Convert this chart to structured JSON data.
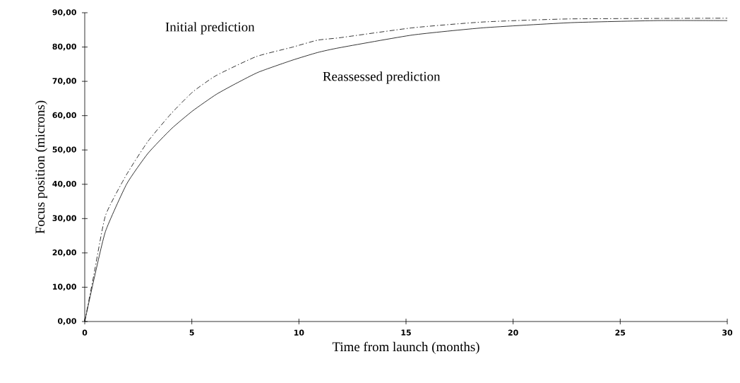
{
  "chart_data": {
    "type": "line",
    "xlabel": "Time from launch  (months)",
    "ylabel": "Focus position  (microns)",
    "xlim": [
      0,
      30
    ],
    "ylim": [
      0,
      90
    ],
    "xticks": [
      0,
      5,
      10,
      15,
      20,
      25,
      30
    ],
    "yticks": [
      {
        "value": 0,
        "label": "0,00"
      },
      {
        "value": 10,
        "label": "10,00"
      },
      {
        "value": 20,
        "label": "20,00"
      },
      {
        "value": 30,
        "label": "30,00"
      },
      {
        "value": 40,
        "label": "40,00"
      },
      {
        "value": 50,
        "label": "50,00"
      },
      {
        "value": 60,
        "label": "60,00"
      },
      {
        "value": 70,
        "label": "70,00"
      },
      {
        "value": 80,
        "label": "80,00"
      },
      {
        "value": 90,
        "label": "90,00"
      }
    ],
    "grid": false,
    "legend": false,
    "marker": "none",
    "series": [
      {
        "name": "Initial prediction",
        "color": "#000000",
        "line_style": "dashed",
        "x": [
          0,
          0.42,
          0.97,
          1.96,
          2.95,
          4.05,
          5.04,
          6.14,
          8.0,
          9.66,
          10.87,
          11.9,
          15.3,
          18.6,
          22.7,
          30
        ],
        "values": [
          0,
          13.4,
          30.9,
          42.9,
          52.5,
          60.7,
          66.9,
          71.7,
          77.2,
          79.9,
          82.0,
          82.7,
          85.6,
          87.3,
          88.2,
          88.4
        ]
      },
      {
        "name": "Reassessed prediction",
        "color": "#000000",
        "line_style": "solid",
        "x": [
          0,
          0.42,
          0.97,
          1.96,
          2.95,
          4.05,
          5.04,
          6.14,
          7.13,
          8.12,
          9.66,
          10.87,
          11.9,
          15.3,
          18.6,
          22.7,
          26.7,
          30
        ],
        "values": [
          0,
          12.0,
          26.3,
          40.1,
          49.0,
          56.2,
          61.4,
          66.2,
          69.6,
          72.7,
          76.1,
          78.4,
          79.8,
          83.5,
          85.6,
          87.1,
          87.7,
          87.7
        ]
      }
    ]
  }
}
